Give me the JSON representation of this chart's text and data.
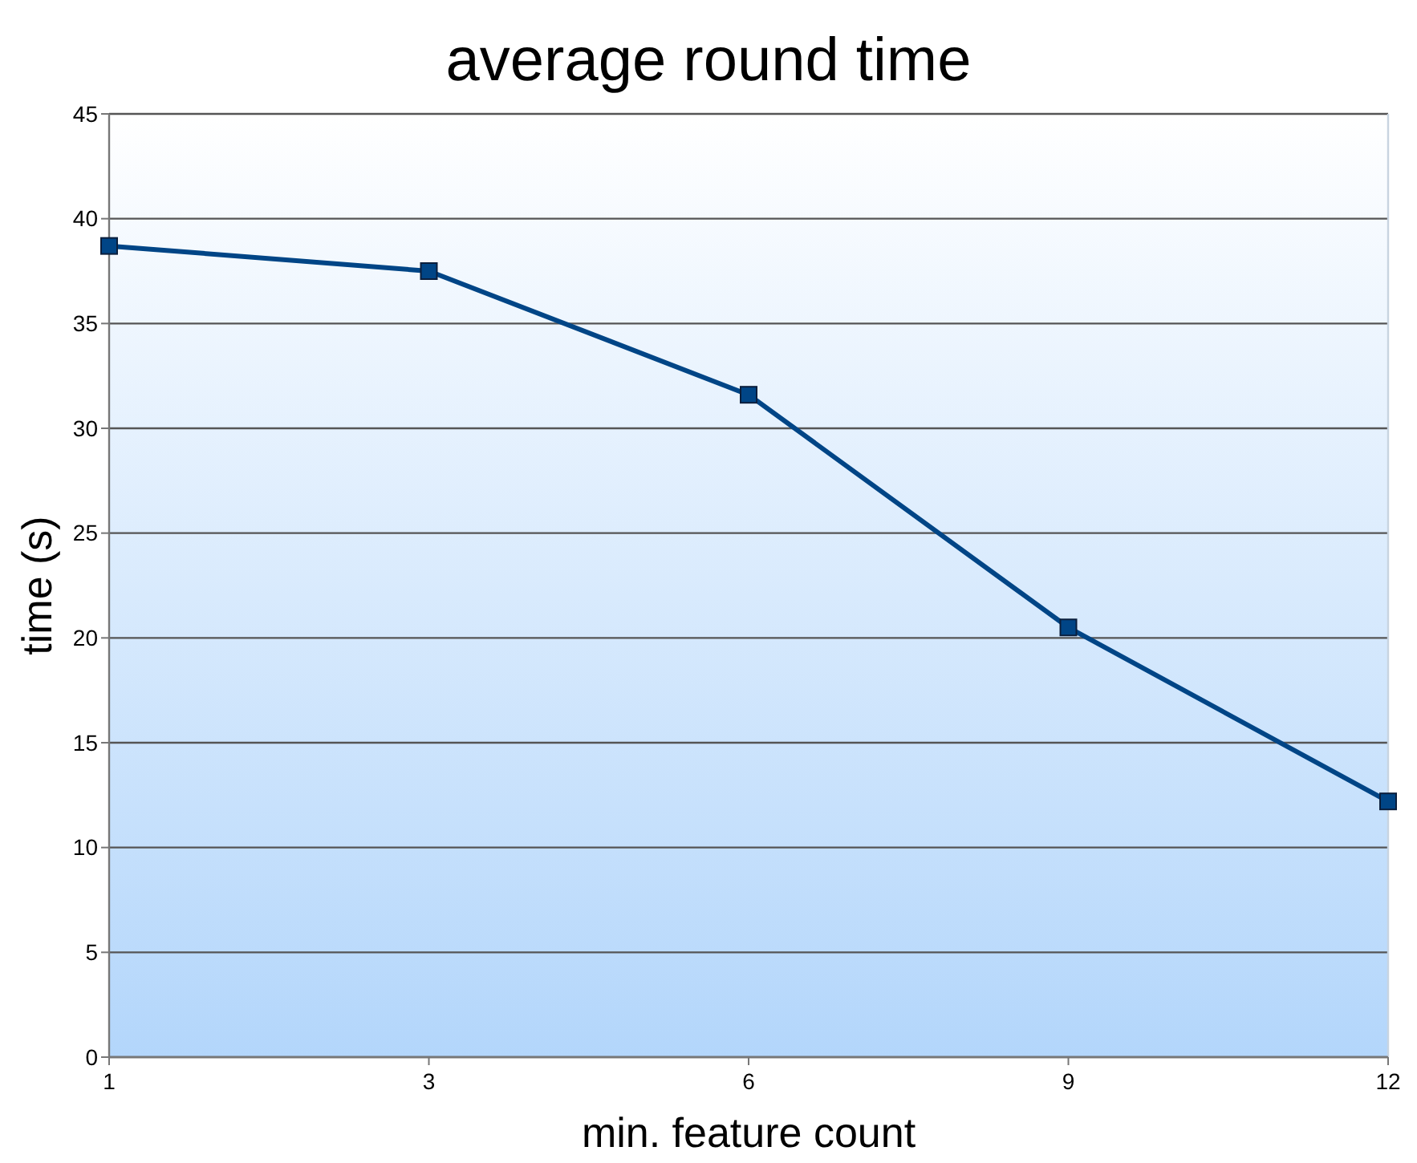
{
  "chart_data": {
    "type": "line",
    "title": "average round time",
    "xlabel": "min. feature count",
    "ylabel": "time (s)",
    "categories": [
      "1",
      "3",
      "6",
      "9",
      "12"
    ],
    "series": [
      {
        "color": "#004586",
        "values": [
          38.7,
          37.5,
          31.6,
          20.5,
          12.2
        ]
      }
    ],
    "ylim": [
      0,
      45
    ],
    "yticks": [
      0,
      5,
      10,
      15,
      20,
      25,
      30,
      35,
      40,
      45
    ],
    "grid": "y",
    "marker": "square",
    "line_style": "solid"
  }
}
